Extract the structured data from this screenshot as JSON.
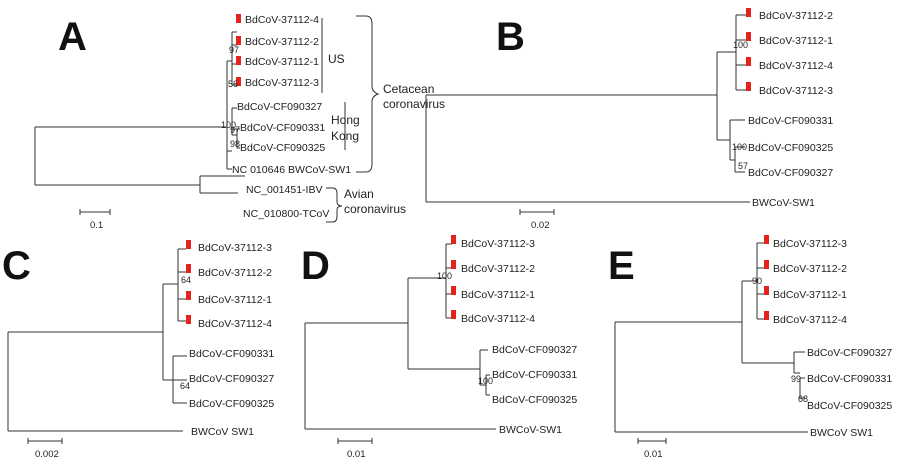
{
  "panels": [
    {
      "letter": "A",
      "scale": "0.1",
      "leaves": [
        "BdCoV-37112-4",
        "BdCoV-37112-2",
        "BdCoV-37112-1",
        "BdCoV-37112-3",
        "BdCoV-CF090327",
        "BdCoV-CF090331",
        "BdCoV-CF090325",
        "NC 010646 BWCoV-SW1",
        "NC_001451-IBV",
        "NC_010800-TCoV"
      ],
      "bootstrap": [
        "97",
        "56",
        "100",
        "97",
        "98"
      ],
      "groups": {
        "us": "US",
        "hongkong": [
          "Hong",
          "Kong"
        ],
        "cetacean": [
          "Cetacean",
          "coronavirus"
        ],
        "avian": [
          "Avian",
          "coronavirus"
        ]
      }
    },
    {
      "letter": "B",
      "scale": "0.02",
      "leaves": [
        "BdCoV-37112-2",
        "BdCoV-37112-1",
        "BdCoV-37112-4",
        "BdCoV-37112-3",
        "BdCoV-CF090331",
        "BdCoV-CF090325",
        "BdCoV-CF090327",
        "BWCoV-SW1"
      ],
      "bootstrap": [
        "100",
        "100",
        "57"
      ]
    },
    {
      "letter": "C",
      "scale": "0.002",
      "leaves": [
        "BdCoV-37112-3",
        "BdCoV-37112-2",
        "BdCoV-37112-1",
        "BdCoV-37112-4",
        "BdCoV-CF090331",
        "BdCoV-CF090327",
        "BdCoV-CF090325",
        "BWCoV SW1"
      ],
      "bootstrap": [
        "64",
        "64"
      ]
    },
    {
      "letter": "D",
      "scale": "0.01",
      "leaves": [
        "BdCoV-37112-3",
        "BdCoV-37112-2",
        "BdCoV-37112-1",
        "BdCoV-37112-4",
        "BdCoV-CF090327",
        "BdCoV-CF090331",
        "BdCoV-CF090325",
        "BWCoV-SW1"
      ],
      "bootstrap": [
        "100",
        "100"
      ]
    },
    {
      "letter": "E",
      "scale": "0.01",
      "leaves": [
        "BdCoV-37112-3",
        "BdCoV-37112-2",
        "BdCoV-37112-1",
        "BdCoV-37112-4",
        "BdCoV-CF090327",
        "BdCoV-CF090331",
        "BdCoV-CF090325",
        "BWCoV SW1"
      ],
      "bootstrap": [
        "90",
        "99",
        "68"
      ]
    }
  ],
  "colors": {
    "marker": "#e3231c",
    "branch": "#333333",
    "text": "#222222"
  }
}
